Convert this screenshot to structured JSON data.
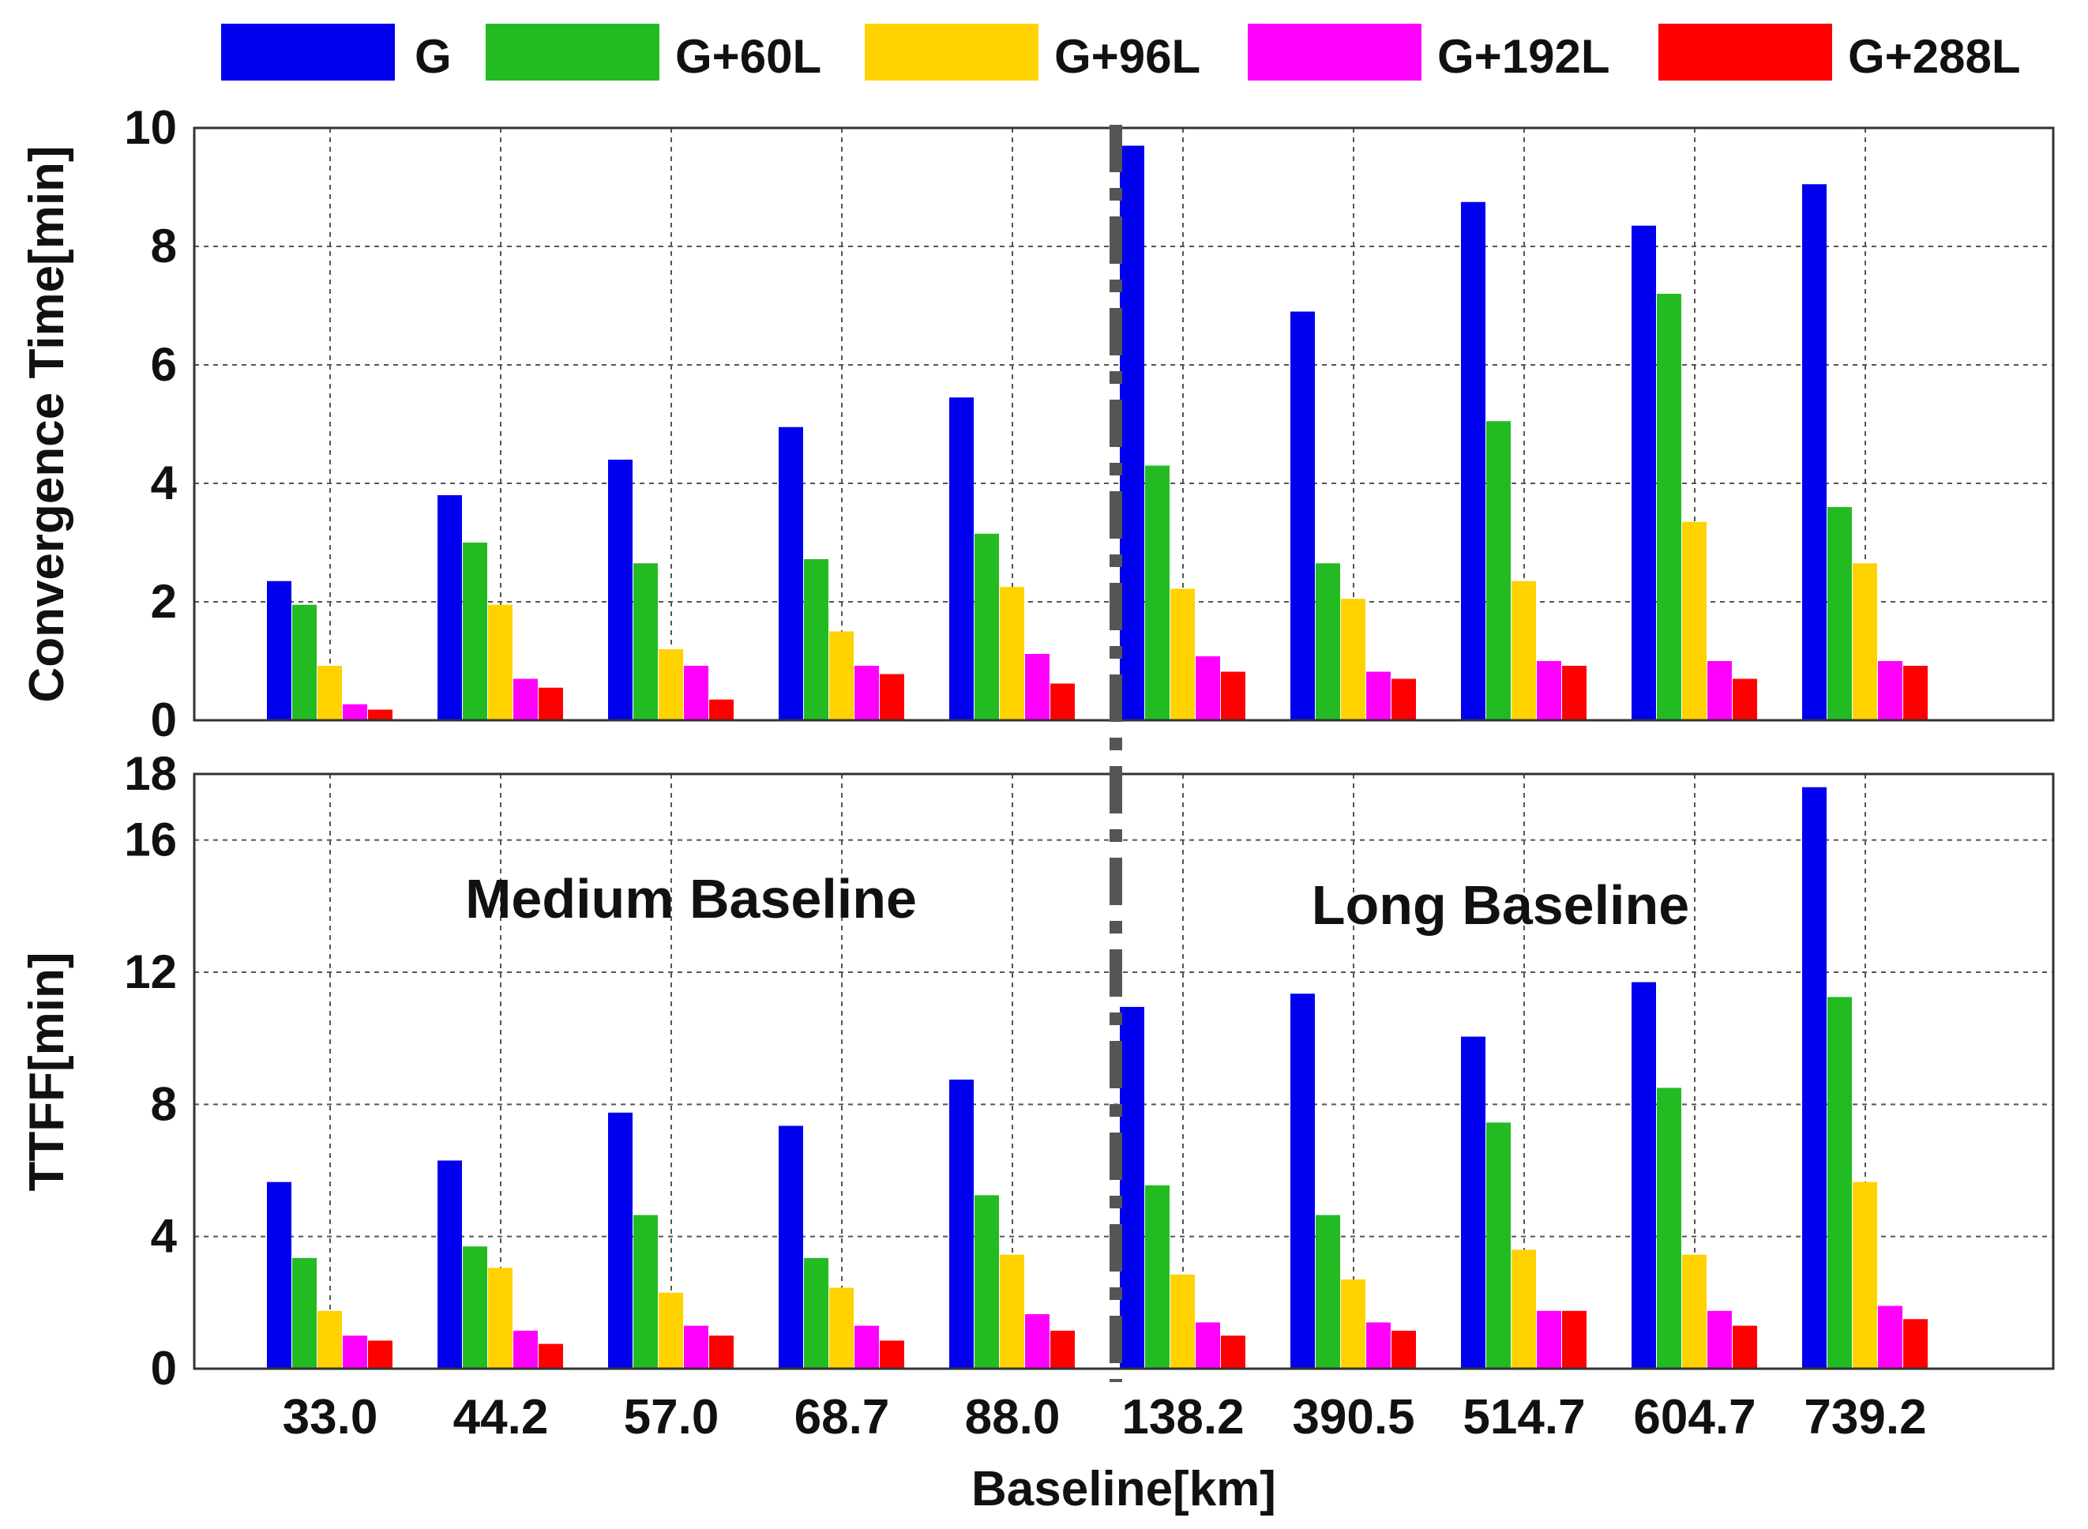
{
  "chart_data": [
    {
      "type": "bar",
      "title": "",
      "xlabel": "Baseline[km]",
      "ylabel": "Convergence Time[min]",
      "ylim": [
        0,
        10
      ],
      "yticks": [
        "0",
        "2",
        "4",
        "6",
        "8",
        "10"
      ],
      "grid": true,
      "categories": [
        "33.0",
        "44.2",
        "57.0",
        "68.7",
        "88.0",
        "138.2",
        "390.5",
        "514.7",
        "604.7",
        "739.2"
      ],
      "series": [
        {
          "name": "G",
          "color": "#0000ee",
          "values": [
            2.35,
            3.8,
            4.4,
            4.95,
            5.45,
            9.7,
            6.9,
            8.75,
            8.35,
            9.05
          ]
        },
        {
          "name": "G+60L",
          "color": "#22bb22",
          "values": [
            1.95,
            3.0,
            2.65,
            2.72,
            3.15,
            4.3,
            2.65,
            5.05,
            7.2,
            3.6
          ]
        },
        {
          "name": "G+96L",
          "color": "#ffd200",
          "values": [
            0.92,
            1.95,
            1.2,
            1.5,
            2.25,
            2.22,
            2.05,
            2.35,
            3.35,
            2.65
          ]
        },
        {
          "name": "G+192L",
          "color": "#ff00ff",
          "values": [
            0.27,
            0.7,
            0.92,
            0.92,
            1.12,
            1.08,
            0.82,
            1.0,
            1.0,
            1.0
          ]
        },
        {
          "name": "G+288L",
          "color": "#ff0000",
          "values": [
            0.18,
            0.55,
            0.35,
            0.78,
            0.62,
            0.82,
            0.7,
            0.92,
            0.7,
            0.92
          ]
        }
      ]
    },
    {
      "type": "bar",
      "title": "",
      "xlabel": "Baseline[km]",
      "ylabel": "TTFF[min]",
      "ylim": [
        0,
        18
      ],
      "yticks": [
        "0",
        "4",
        "8",
        "12",
        "16",
        "18"
      ],
      "grid": true,
      "categories": [
        "33.0",
        "44.2",
        "57.0",
        "68.7",
        "88.0",
        "138.2",
        "390.5",
        "514.7",
        "604.7",
        "739.2"
      ],
      "annotations": [
        "Medium Baseline",
        "Long Baseline"
      ],
      "series": [
        {
          "name": "G",
          "color": "#0000ee",
          "values": [
            5.65,
            6.3,
            7.75,
            7.35,
            8.75,
            10.95,
            11.35,
            10.05,
            11.7,
            17.6
          ]
        },
        {
          "name": "G+60L",
          "color": "#22bb22",
          "values": [
            3.35,
            3.7,
            4.65,
            3.35,
            5.25,
            5.55,
            4.65,
            7.45,
            8.5,
            11.25
          ]
        },
        {
          "name": "G+96L",
          "color": "#ffd200",
          "values": [
            1.75,
            3.05,
            2.3,
            2.45,
            3.45,
            2.85,
            2.7,
            3.6,
            3.45,
            5.65
          ]
        },
        {
          "name": "G+192L",
          "color": "#ff00ff",
          "values": [
            1.0,
            1.15,
            1.3,
            1.3,
            1.65,
            1.4,
            1.4,
            1.75,
            1.75,
            1.9
          ]
        },
        {
          "name": "G+288L",
          "color": "#ff0000",
          "values": [
            0.85,
            0.75,
            1.0,
            0.85,
            1.15,
            1.0,
            1.15,
            1.75,
            1.3,
            1.5
          ]
        }
      ]
    }
  ]
}
